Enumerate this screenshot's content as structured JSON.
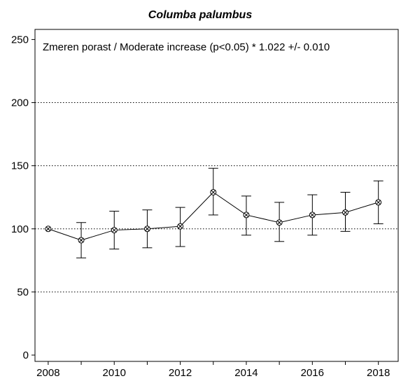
{
  "chart_data": {
    "type": "line",
    "title": "Columba palumbus",
    "annotation": "Zmeren porast / Moderate increase (p<0.05) *  1.022 +/- 0.010",
    "xlabel": "",
    "ylabel": "",
    "x": [
      2008,
      2009,
      2010,
      2011,
      2012,
      2013,
      2014,
      2015,
      2016,
      2017,
      2018
    ],
    "series": [
      {
        "values": [
          100,
          91,
          99,
          100,
          102,
          129,
          111,
          105,
          111,
          113,
          121
        ],
        "lower": [
          100,
          77,
          84,
          85,
          86,
          111,
          95,
          90,
          95,
          98,
          104
        ],
        "upper": [
          100,
          105,
          114,
          115,
          117,
          148,
          126,
          121,
          127,
          129,
          138
        ]
      }
    ],
    "xlim": [
      2007.6,
      2018.6
    ],
    "ylim": [
      -5,
      258
    ],
    "xticks": [
      2008,
      2010,
      2012,
      2014,
      2016,
      2018
    ],
    "yticks": [
      0,
      50,
      100,
      150,
      200,
      250
    ],
    "grid_y": [
      50,
      100,
      150,
      200
    ],
    "grid": "dotted horizontal",
    "marker": "circle-with-x",
    "colors": {
      "line": "#000000",
      "background": "#ffffff"
    }
  }
}
